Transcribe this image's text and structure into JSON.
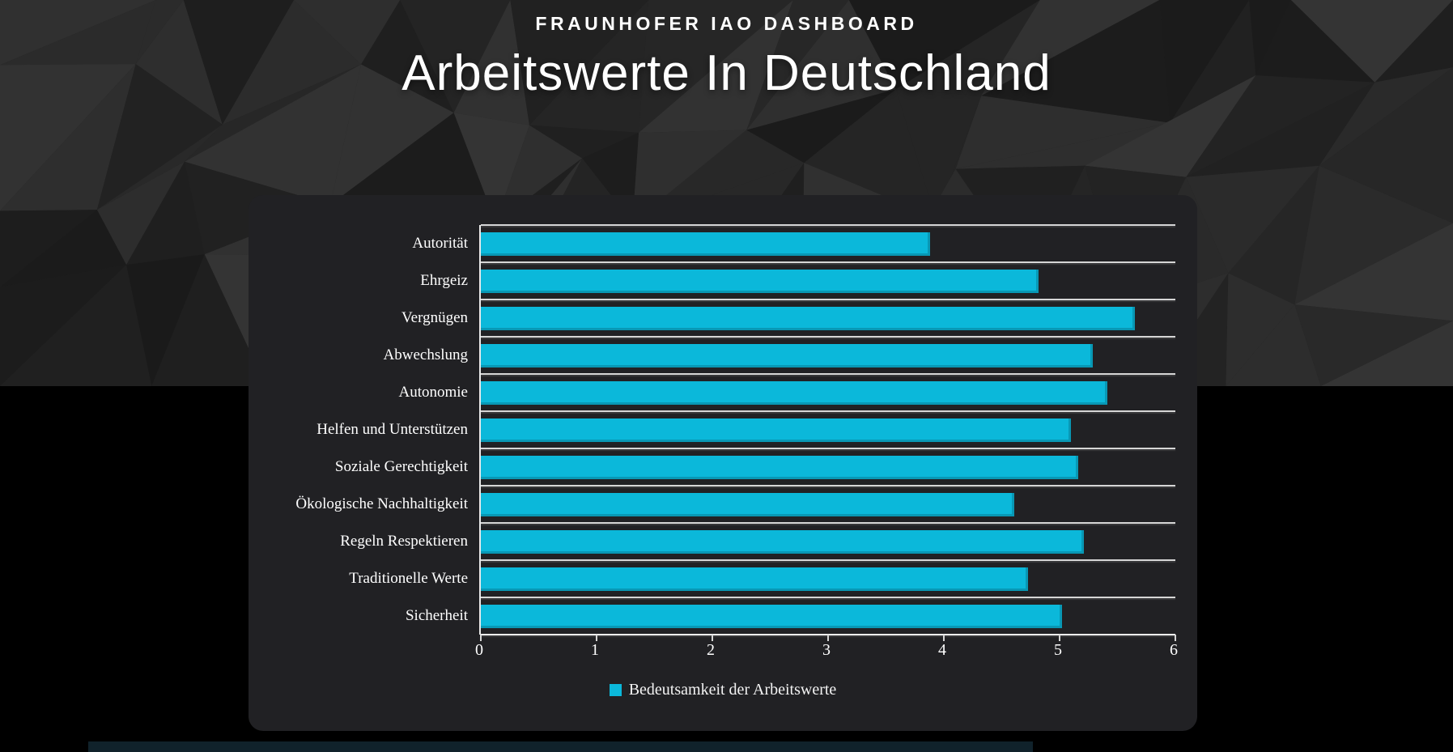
{
  "header": {
    "kicker": "FRAUNHOFER IAO DASHBOARD",
    "title": "Arbeitswerte In Deutschland"
  },
  "chart_data": {
    "type": "bar",
    "orientation": "horizontal",
    "title": "Arbeitswerte In Deutschland",
    "categories": [
      "Autorität",
      "Ehrgeiz",
      "Vergnügen",
      "Abwechslung",
      "Autonomie",
      "Helfen und Unterstützen",
      "Soziale Gerechtigkeit",
      "Ökologische Nachhaltigkeit",
      "Regeln Respektieren",
      "Traditionelle Werte",
      "Sicherheit"
    ],
    "series": [
      {
        "name": "Bedeutsamkeit der Arbeitswerte",
        "values": [
          3.88,
          4.82,
          5.65,
          5.29,
          5.41,
          5.1,
          5.16,
          4.61,
          5.21,
          4.73,
          5.02
        ]
      }
    ],
    "xlabel": "",
    "ylabel": "",
    "xlim": [
      0,
      6
    ],
    "xticks": [
      0,
      1,
      2,
      3,
      4,
      5,
      6
    ],
    "grid": true,
    "legend_position": "bottom",
    "bar_color": "#0bb8da",
    "gridline_color": "#d6d6d6",
    "background_color": "#212124",
    "text_color": "#ffffff"
  },
  "legend": {
    "label": "Bedeutsamkeit der Arbeitswerte"
  }
}
